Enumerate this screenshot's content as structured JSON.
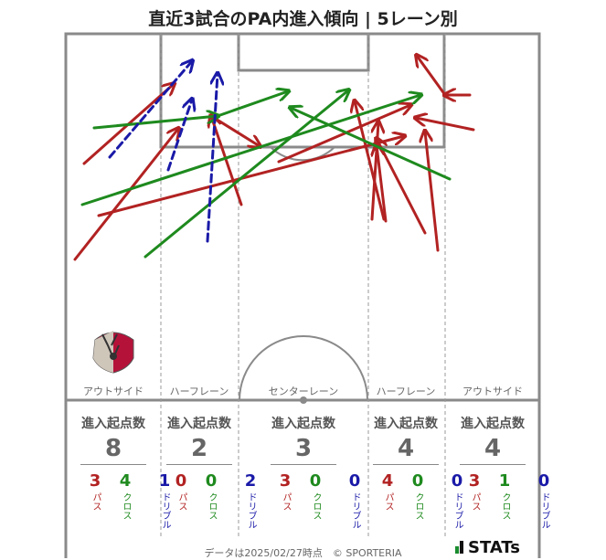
{
  "title": "直近3試合のPA内進入傾向 | 5レーン別",
  "colors": {
    "pass": "#b22222",
    "cross": "#1e8a1e",
    "dribble": "#1a1aa8",
    "pitch_line": "#888888"
  },
  "lanes": [
    {
      "name": "アウトサイド",
      "header": "進入起点数",
      "total": "8",
      "pass": "3",
      "cross": "4",
      "dribble": "1"
    },
    {
      "name": "ハーフレーン",
      "header": "進入起点数",
      "total": "2",
      "pass": "0",
      "cross": "0",
      "dribble": "2"
    },
    {
      "name": "センターレーン",
      "header": "進入起点数",
      "total": "3",
      "pass": "3",
      "cross": "0",
      "dribble": "0"
    },
    {
      "name": "ハーフレーン",
      "header": "進入起点数",
      "total": "4",
      "pass": "4",
      "cross": "0",
      "dribble": "0"
    },
    {
      "name": "アウトサイド",
      "header": "進入起点数",
      "total": "4",
      "pass": "3",
      "cross": "1",
      "dribble": "0"
    }
  ],
  "labels": {
    "pass": "パス",
    "cross": "クロス",
    "dribble": "ドリブル"
  },
  "footer": "データは2025/02/27時点　© SPORTERIA",
  "brand": "STATs",
  "crest_icon": "kashima-antlers-crest-icon",
  "chart_data": {
    "type": "arrow-map",
    "title": "直近3試合のPA内進入傾向 | 5レーン別",
    "arrows": [
      {
        "type": "pass",
        "from": [
          92,
          179
        ],
        "to": [
          190,
          92
        ]
      },
      {
        "type": "pass",
        "from": [
          82,
          284
        ],
        "to": [
          195,
          141
        ]
      },
      {
        "type": "pass",
        "from": [
          264,
          224
        ],
        "to": [
          231,
          127
        ]
      },
      {
        "type": "pass",
        "from": [
          231,
          127
        ],
        "to": [
          284,
          160
        ]
      },
      {
        "type": "pass",
        "from": [
          108,
          236
        ],
        "to": [
          442,
          149
        ]
      },
      {
        "type": "pass",
        "from": [
          305,
          177
        ],
        "to": [
          449,
          115
        ]
      },
      {
        "type": "pass",
        "from": [
          407,
          240
        ],
        "to": [
          414,
          134
        ]
      },
      {
        "type": "pass",
        "from": [
          422,
          242
        ],
        "to": [
          412,
          159
        ]
      },
      {
        "type": "pass",
        "from": [
          420,
          240
        ],
        "to": [
          388,
          111
        ]
      },
      {
        "type": "pass",
        "from": [
          479,
          274
        ],
        "to": [
          465,
          144
        ]
      },
      {
        "type": "pass",
        "from": [
          465,
          255
        ],
        "to": [
          412,
          152
        ]
      },
      {
        "type": "pass",
        "from": [
          518,
          142
        ],
        "to": [
          455,
          129
        ]
      },
      {
        "type": "pass",
        "from": [
          487,
          104
        ],
        "to": [
          456,
          61
        ]
      },
      {
        "type": "pass",
        "from": [
          514,
          104
        ],
        "to": [
          487,
          104
        ]
      },
      {
        "type": "cross",
        "from": [
          103,
          140
        ],
        "to": [
          238,
          127
        ]
      },
      {
        "type": "cross",
        "from": [
          238,
          127
        ],
        "to": [
          315,
          100
        ]
      },
      {
        "type": "cross",
        "from": [
          90,
          224
        ],
        "to": [
          460,
          104
        ]
      },
      {
        "type": "cross",
        "from": [
          159,
          281
        ],
        "to": [
          381,
          99
        ]
      },
      {
        "type": "cross",
        "from": [
          492,
          196
        ],
        "to": [
          318,
          118
        ]
      },
      {
        "type": "dribble",
        "from": [
          120,
          172
        ],
        "to": [
          210,
          67
        ]
      },
      {
        "type": "dribble",
        "from": [
          184,
          186
        ],
        "to": [
          210,
          109
        ]
      },
      {
        "type": "dribble",
        "from": [
          227,
          264
        ],
        "to": [
          238,
          81
        ]
      }
    ]
  }
}
